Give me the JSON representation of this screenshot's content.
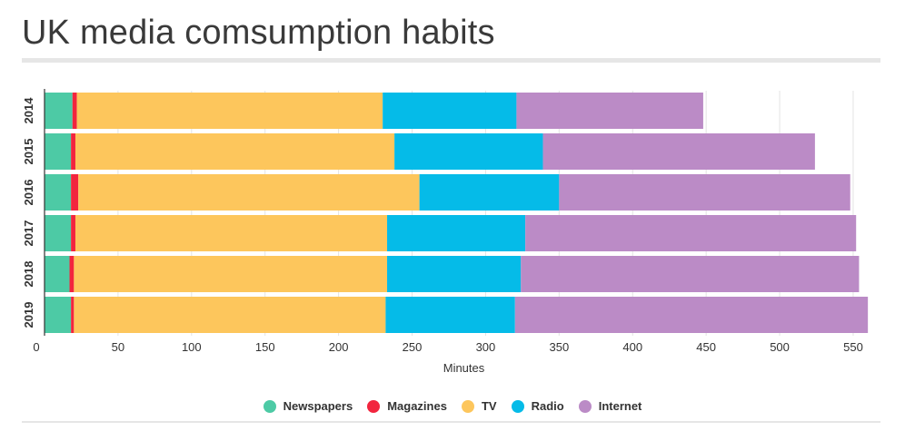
{
  "title": "UK media comsumption habits",
  "chart_data": {
    "type": "bar",
    "orientation": "horizontal",
    "stacked": true,
    "categories": [
      "2014",
      "2015",
      "2016",
      "2017",
      "2018",
      "2019"
    ],
    "series": [
      {
        "name": "Newspapers",
        "color": "#4dcaa5",
        "values": [
          19,
          18,
          18,
          18,
          17,
          18
        ]
      },
      {
        "name": "Magazines",
        "color": "#f2253e",
        "values": [
          3,
          3,
          5,
          3,
          3,
          2
        ]
      },
      {
        "name": "TV",
        "color": "#fdc65c",
        "values": [
          208,
          217,
          232,
          212,
          213,
          212
        ]
      },
      {
        "name": "Radio",
        "color": "#05bbe8",
        "values": [
          91,
          101,
          95,
          94,
          91,
          88
        ]
      },
      {
        "name": "Internet",
        "color": "#bb8bc6",
        "values": [
          127,
          185,
          198,
          225,
          230,
          240
        ]
      }
    ],
    "xlabel": "Minutes",
    "ylabel": "",
    "xlim": [
      0,
      563
    ],
    "xticks": [
      0,
      50,
      100,
      150,
      200,
      250,
      300,
      350,
      400,
      450,
      500,
      550
    ],
    "grid": true,
    "legend": "bottom"
  }
}
